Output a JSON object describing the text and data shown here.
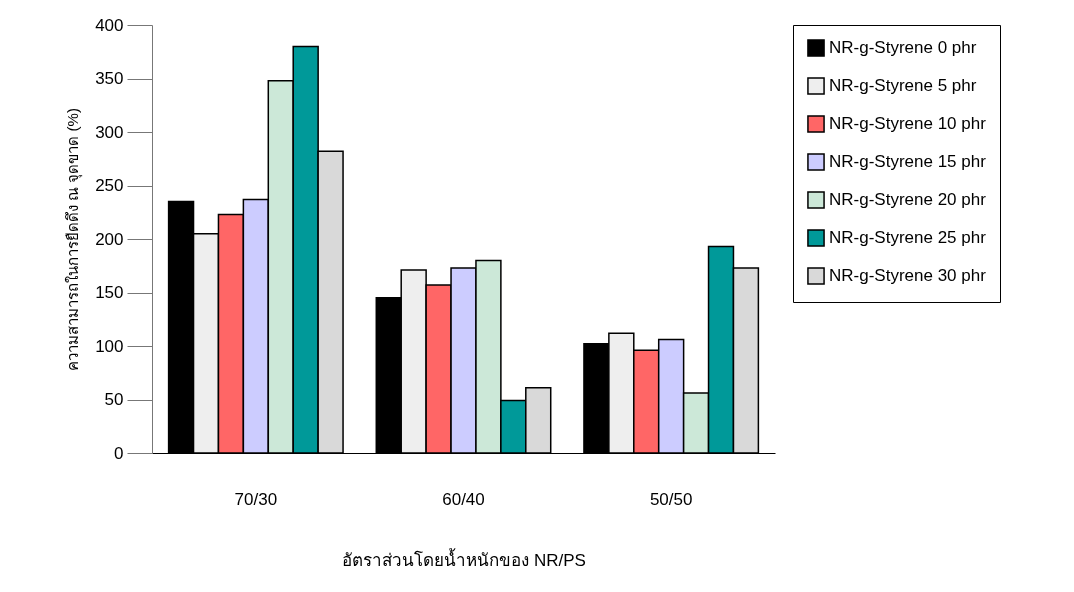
{
  "chart_data": {
    "type": "bar",
    "xlabel": "อัตราส่วนโดยน้ำหนักของ NR/PS",
    "ylabel": "ความสามารถในการยืดดึง ณ จุดขาด (%)",
    "categories": [
      "70/30",
      "60/40",
      "50/50"
    ],
    "series": [
      {
        "name": "NR-g-Styrene 0 phr",
        "color": "#000000",
        "values": [
          235,
          145,
          102
        ]
      },
      {
        "name": "NR-g-Styrene 5 phr",
        "color": "#eeeeee",
        "values": [
          205,
          171,
          112
        ]
      },
      {
        "name": "NR-g-Styrene 10 phr",
        "color": "#ff6666",
        "values": [
          223,
          157,
          96
        ]
      },
      {
        "name": "NR-g-Styrene 15 phr",
        "color": "#ccccff",
        "values": [
          237,
          173,
          106
        ]
      },
      {
        "name": "NR-g-Styrene 20 phr",
        "color": "#cce8d8",
        "values": [
          348,
          180,
          56
        ]
      },
      {
        "name": "NR-g-Styrene 25 phr",
        "color": "#009999",
        "values": [
          380,
          49,
          193
        ]
      },
      {
        "name": "NR-g-Styrene 30 phr",
        "color": "#d9d9d9",
        "values": [
          282,
          61,
          173
        ]
      }
    ],
    "ylim": [
      0,
      400
    ],
    "yticks": [
      0,
      50,
      100,
      150,
      200,
      250,
      300,
      350,
      400
    ],
    "grid": false,
    "legend": "right"
  }
}
